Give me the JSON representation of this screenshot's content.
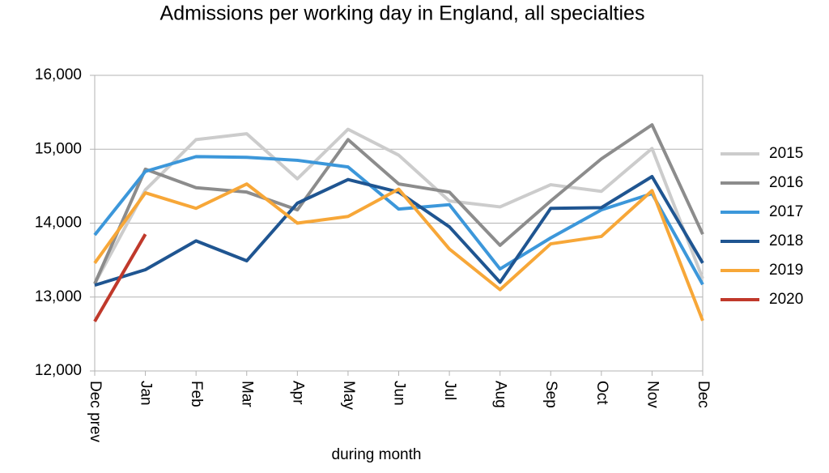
{
  "chart_data": {
    "type": "line",
    "title": "Admissions per working day in England, all specialties",
    "x_label": "during  month",
    "categories": [
      "Dec prev",
      "Jan",
      "Feb",
      "Mar",
      "Apr",
      "May",
      "Jun",
      "Jul",
      "Aug",
      "Sep",
      "Oct",
      "Nov",
      "Dec"
    ],
    "series": [
      {
        "name": "2015",
        "color": "#cccccc",
        "values": [
          13180,
          14450,
          15130,
          15210,
          14600,
          15270,
          14920,
          14300,
          14220,
          14520,
          14430,
          15010,
          13250
        ]
      },
      {
        "name": "2016",
        "color": "#8c8c8c",
        "values": [
          13180,
          14730,
          14480,
          14420,
          14180,
          15130,
          14530,
          14420,
          13700,
          14300,
          14870,
          15330,
          13850
        ]
      },
      {
        "name": "2017",
        "color": "#3c97da",
        "values": [
          13840,
          14700,
          14900,
          14890,
          14850,
          14760,
          14190,
          14250,
          13380,
          13800,
          14180,
          14400,
          13170
        ]
      },
      {
        "name": "2018",
        "color": "#1f5591",
        "values": [
          13160,
          13370,
          13760,
          13490,
          14270,
          14590,
          14420,
          13950,
          13200,
          14200,
          14210,
          14630,
          13460
        ]
      },
      {
        "name": "2019",
        "color": "#f7a738",
        "values": [
          13460,
          14410,
          14200,
          14530,
          14000,
          14090,
          14460,
          13650,
          13100,
          13720,
          13820,
          14440,
          12680
        ]
      },
      {
        "name": "2020",
        "color": "#c0392b",
        "values": [
          12670,
          13850,
          null,
          null,
          null,
          null,
          null,
          null,
          null,
          null,
          null,
          null,
          null
        ]
      }
    ],
    "ylim": [
      12000,
      16000
    ],
    "yticks": [
      {
        "value": 12000,
        "label": "12,000"
      },
      {
        "value": 13000,
        "label": "13,000"
      },
      {
        "value": 14000,
        "label": "14,000"
      },
      {
        "value": 15000,
        "label": "15,000"
      },
      {
        "value": 16000,
        "label": "16,000"
      }
    ],
    "grid": true,
    "legend": "right"
  }
}
